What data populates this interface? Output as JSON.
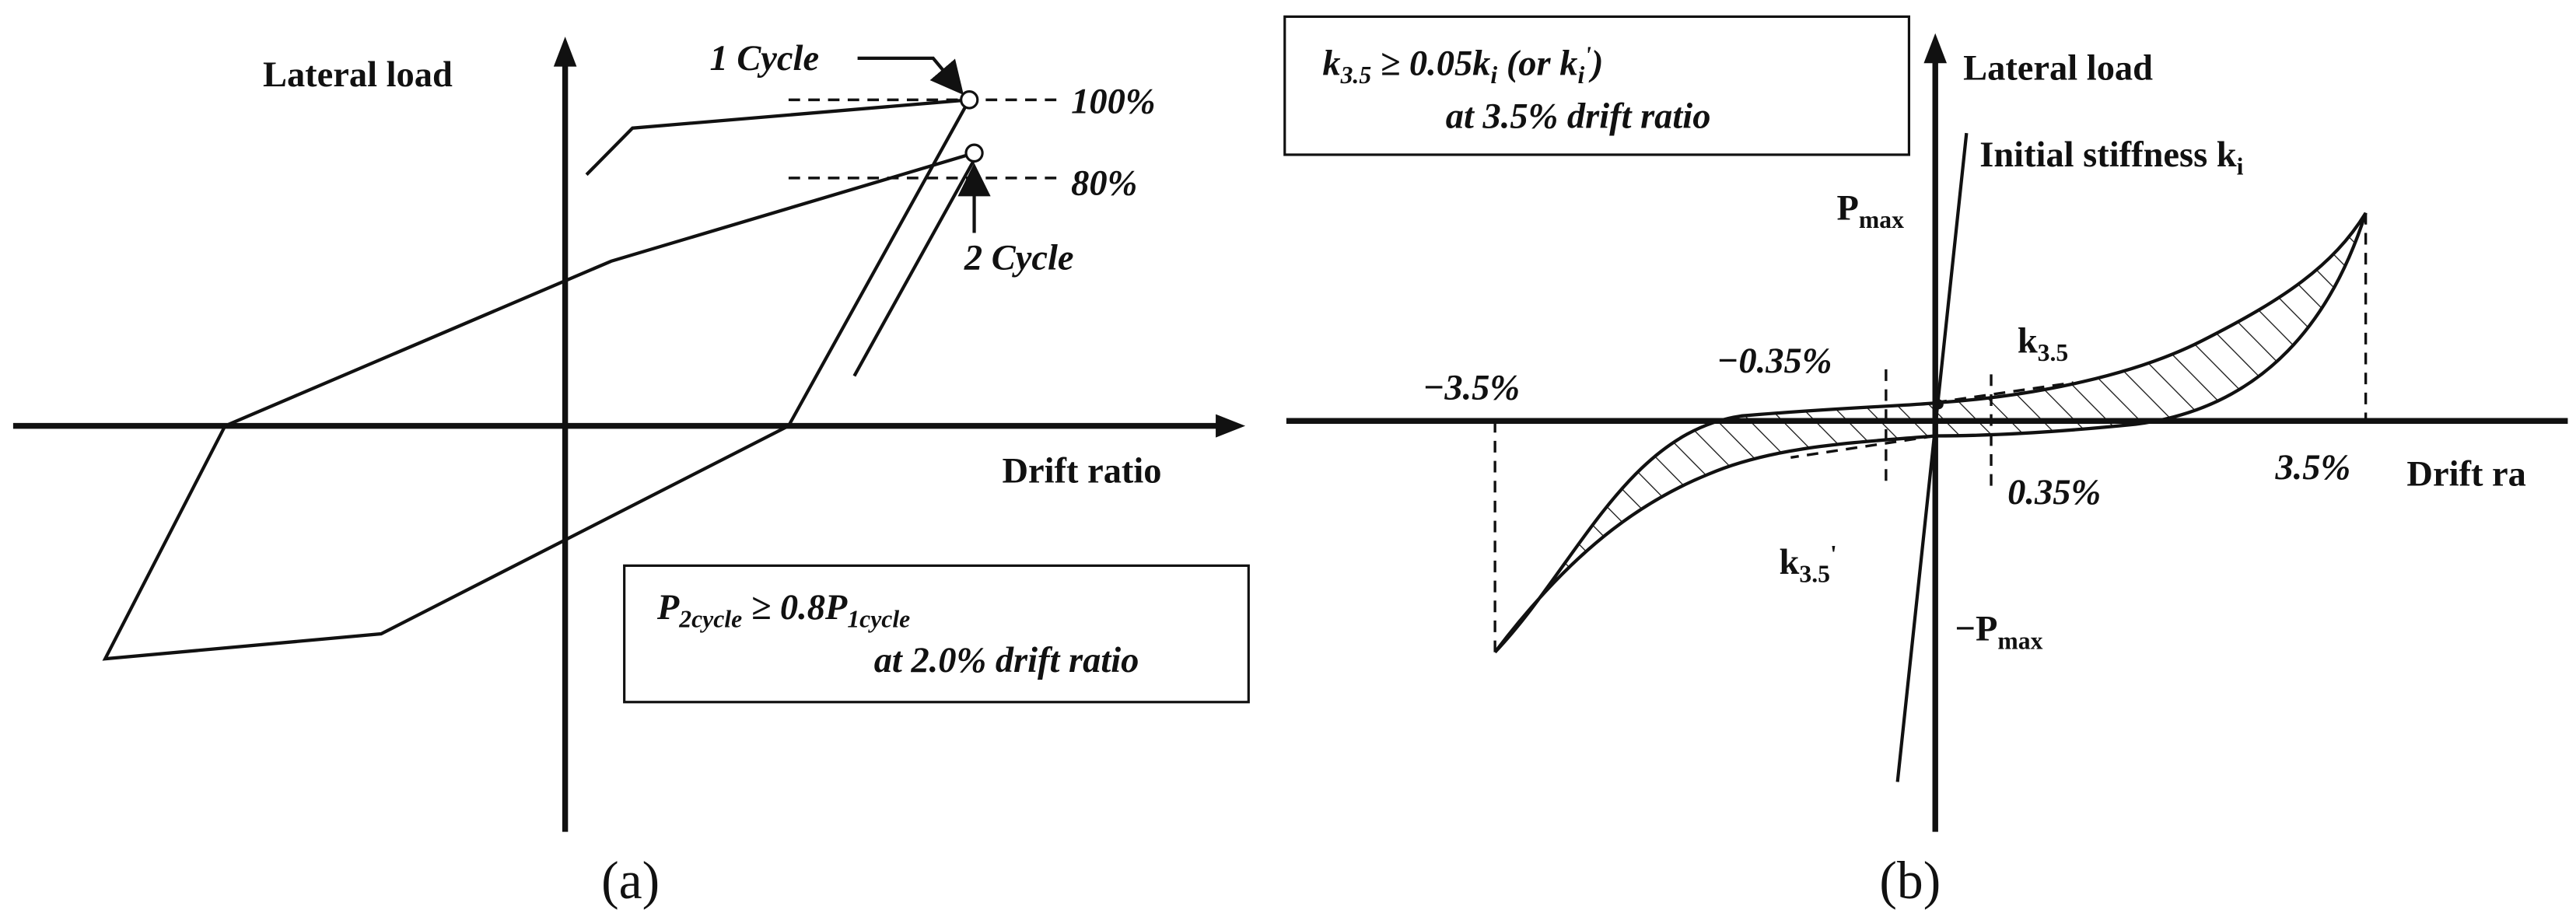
{
  "panel_a": {
    "y_axis_label": "Lateral load",
    "x_axis_label": "Drift ratio",
    "cycle1": "1 Cycle",
    "cycle2": "2 Cycle",
    "level_100": "100%",
    "level_80": "80%",
    "criterion": {
      "p1": "P",
      "s1": "2cycle",
      "p2": " ≥ 0.8P",
      "s2": "1cycle",
      "line2": "at 2.0% drift ratio"
    },
    "caption": "(a)"
  },
  "panel_b": {
    "criterion": {
      "k": "k",
      "k_sub": "3.5",
      "mid": " ≥ 0.05k",
      "i_sub": "i",
      "or": " (or k",
      "i_sub2": "i",
      "prime": "'",
      "close": ")",
      "line2": "at 3.5% drift ratio"
    },
    "y_axis_label": "Lateral load",
    "stiffness": {
      "text": "Initial stiffness k",
      "sub": "i"
    },
    "pmax": {
      "p": "P",
      "sub": "max"
    },
    "neg_pmax": {
      "p": "−P",
      "sub": "max"
    },
    "neg_35": "−3.5%",
    "neg_035": "−0.35%",
    "pos_035": "0.35%",
    "pos_35": "3.5%",
    "k35": {
      "k": "k",
      "sub": "3.5"
    },
    "k35p": {
      "k": "k",
      "sub": "3.5",
      "prime": "'"
    },
    "x_axis_label": "Drift ra",
    "caption": "(b)"
  }
}
